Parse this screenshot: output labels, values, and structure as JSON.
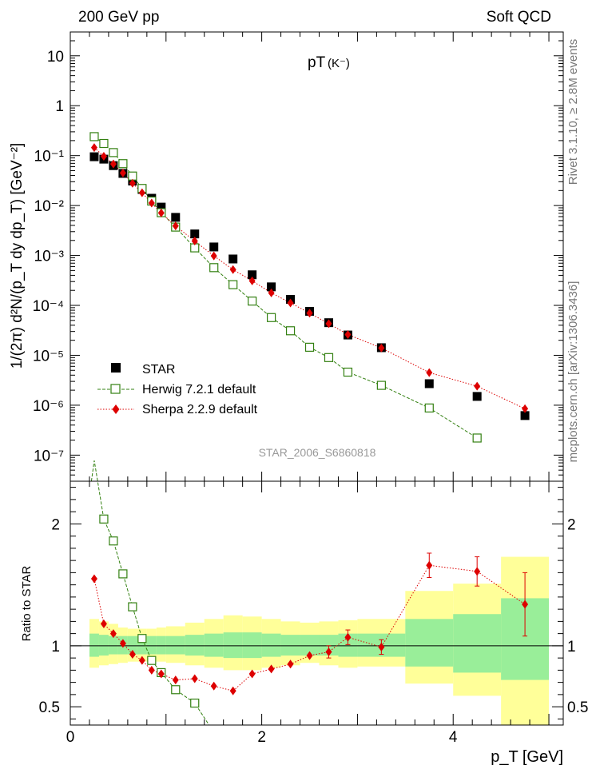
{
  "header": {
    "left": "200 GeV pp",
    "right": "Soft QCD"
  },
  "side_labels": {
    "top": "Rivet 3.1.10, ≥ 2.8M events",
    "bottom": "mcplots.cern.ch [arXiv:1306.3436]"
  },
  "plot_title": {
    "main": "pT",
    "sub": "(K⁻)"
  },
  "analysis_id": "STAR_2006_S6860818",
  "legend": {
    "star": "STAR",
    "herwig": "Herwig 7.2.1 default",
    "sherpa": "Sherpa 2.2.9 default"
  },
  "colors": {
    "herwig": "#338011",
    "sherpa": "#dd0000",
    "star": "#000000",
    "band_outer": "#ffff99",
    "band_inner": "#99ee99"
  },
  "chart_data": [
    {
      "type": "scatter",
      "scale": "log",
      "ylabel": "1/(2π) d²N/(p_T dy dp_T) [GeV⁻²]",
      "xlim": [
        0,
        5.15
      ],
      "ylim": [
        3e-08,
        30
      ],
      "y_tick_labels": [
        "10⁻⁷",
        "10⁻⁶",
        "10⁻⁵",
        "10⁻⁴",
        "10⁻³",
        "10⁻²",
        "10⁻¹",
        "1",
        "10"
      ],
      "series": [
        {
          "name": "STAR",
          "x": [
            0.25,
            0.35,
            0.45,
            0.55,
            0.65,
            0.75,
            0.85,
            0.95,
            1.1,
            1.3,
            1.5,
            1.7,
            1.9,
            2.1,
            2.3,
            2.5,
            2.7,
            2.9,
            3.25,
            3.75,
            4.25,
            4.75
          ],
          "y": [
            0.095,
            0.085,
            0.063,
            0.044,
            0.031,
            0.021,
            0.014,
            0.0093,
            0.0058,
            0.0027,
            0.00148,
            0.00085,
            0.00041,
            0.000235,
            0.000132,
            7.6e-05,
            4.5e-05,
            2.55e-05,
            1.42e-05,
            2.7e-06,
            1.5e-06,
            6.2e-07
          ]
        },
        {
          "name": "Herwig 7.2.1 default",
          "x": [
            0.25,
            0.35,
            0.45,
            0.55,
            0.65,
            0.75,
            0.85,
            0.95,
            1.1,
            1.3,
            1.5,
            1.7,
            1.9,
            2.1,
            2.3,
            2.5,
            2.7,
            2.9,
            3.25,
            3.75,
            4.25
          ],
          "y": [
            0.24,
            0.175,
            0.115,
            0.069,
            0.039,
            0.022,
            0.0123,
            0.0072,
            0.0037,
            0.00142,
            0.00057,
            0.00026,
            0.000122,
            5.7e-05,
            3.1e-05,
            1.45e-05,
            9e-06,
            4.6e-06,
            2.5e-06,
            8.8e-07,
            2.2e-07
          ]
        },
        {
          "name": "Sherpa 2.2.9 default",
          "x": [
            0.25,
            0.35,
            0.45,
            0.55,
            0.65,
            0.75,
            0.85,
            0.95,
            1.1,
            1.3,
            1.5,
            1.7,
            1.9,
            2.1,
            2.3,
            2.5,
            2.7,
            2.9,
            3.25,
            3.75,
            4.25,
            4.75
          ],
          "y": [
            0.145,
            0.097,
            0.068,
            0.045,
            0.028,
            0.018,
            0.0112,
            0.0071,
            0.0039,
            0.00195,
            0.00098,
            0.00052,
            0.00031,
            0.000178,
            0.000112,
            7e-05,
            4.3e-05,
            2.6e-05,
            1.4e-05,
            4.5e-06,
            2.4e-06,
            8.5e-07
          ]
        }
      ]
    },
    {
      "type": "line",
      "ylabel": "Ratio to STAR",
      "xlabel": "p_T [GeV]",
      "xlim": [
        0,
        5.15
      ],
      "ylim": [
        0.35,
        2.35
      ],
      "x_ticks": [
        0,
        2,
        4
      ],
      "x_tick_labels": [
        "0",
        "2",
        "4"
      ],
      "y_ticks": [
        0.5,
        1,
        2
      ],
      "y_tick_labels": [
        "0.5",
        "1",
        "2"
      ],
      "bands": {
        "edges": [
          0.2,
          0.3,
          0.4,
          0.5,
          0.6,
          0.7,
          0.8,
          0.9,
          1.0,
          1.2,
          1.4,
          1.6,
          1.8,
          2.0,
          2.2,
          2.4,
          2.6,
          2.8,
          3.0,
          3.5,
          4.0,
          4.5,
          5.0
        ],
        "outer_low": [
          0.82,
          0.84,
          0.85,
          0.86,
          0.87,
          0.87,
          0.87,
          0.87,
          0.86,
          0.84,
          0.82,
          0.8,
          0.8,
          0.82,
          0.84,
          0.86,
          0.84,
          0.82,
          0.83,
          0.69,
          0.59,
          0.33
        ],
        "outer_high": [
          1.22,
          1.2,
          1.18,
          1.15,
          1.14,
          1.14,
          1.14,
          1.15,
          1.16,
          1.19,
          1.22,
          1.25,
          1.24,
          1.22,
          1.2,
          1.19,
          1.2,
          1.21,
          1.22,
          1.45,
          1.51,
          1.73
        ],
        "inner_low": [
          0.91,
          0.92,
          0.93,
          0.93,
          0.93,
          0.93,
          0.93,
          0.93,
          0.93,
          0.92,
          0.91,
          0.9,
          0.9,
          0.91,
          0.92,
          0.92,
          0.92,
          0.91,
          0.91,
          0.83,
          0.78,
          0.72
        ],
        "inner_high": [
          1.1,
          1.09,
          1.08,
          1.08,
          1.08,
          1.08,
          1.08,
          1.08,
          1.08,
          1.09,
          1.1,
          1.11,
          1.11,
          1.1,
          1.09,
          1.09,
          1.09,
          1.1,
          1.1,
          1.22,
          1.26,
          1.39
        ]
      },
      "series": [
        {
          "name": "Herwig 7.2.1 default",
          "x": [
            0.25,
            0.35,
            0.45,
            0.55,
            0.65,
            0.75,
            0.85,
            0.95,
            1.1,
            1.3
          ],
          "y": [
            2.52,
            2.04,
            1.86,
            1.59,
            1.32,
            1.06,
            0.88,
            0.78,
            0.64,
            0.53
          ],
          "continues_to": [
            1.45,
            0.35
          ]
        },
        {
          "name": "Sherpa 2.2.9 default",
          "x": [
            0.25,
            0.35,
            0.45,
            0.55,
            0.65,
            0.75,
            0.85,
            0.95,
            1.1,
            1.3,
            1.5,
            1.7,
            1.9,
            2.1,
            2.3,
            2.5,
            2.7,
            2.9,
            3.25,
            3.75,
            4.25,
            4.75
          ],
          "y": [
            1.55,
            1.18,
            1.1,
            1.02,
            0.93,
            0.88,
            0.8,
            0.77,
            0.72,
            0.73,
            0.67,
            0.63,
            0.77,
            0.81,
            0.85,
            0.92,
            0.95,
            1.07,
            0.99,
            1.66,
            1.61,
            1.34
          ],
          "err": [
            0.02,
            0.02,
            0.02,
            0.02,
            0.02,
            0.02,
            0.02,
            0.02,
            0.02,
            0.02,
            0.02,
            0.02,
            0.02,
            0.02,
            0.02,
            0.02,
            0.05,
            0.06,
            0.06,
            0.1,
            0.12,
            0.26
          ]
        }
      ]
    }
  ]
}
